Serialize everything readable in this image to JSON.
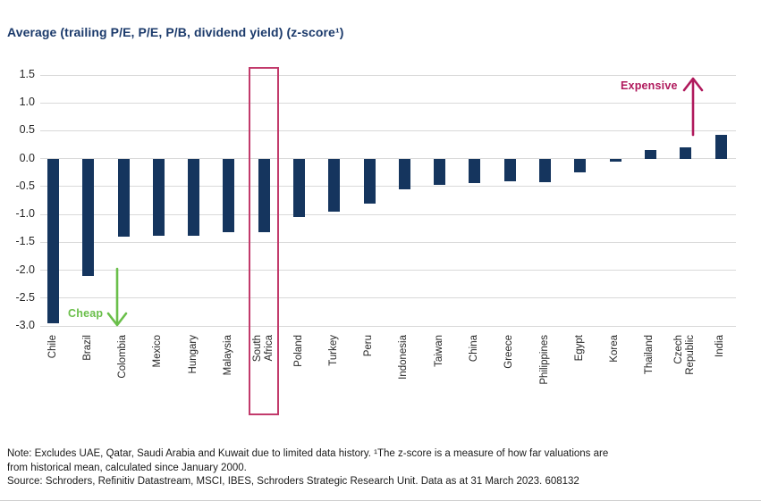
{
  "chart_data": {
    "type": "bar",
    "title": "Average (trailing P/E, P/E, P/B, dividend yield) (z-score¹)",
    "xlabel": "",
    "ylabel": "",
    "ylim": [
      -3.0,
      1.5
    ],
    "yticks": [
      1.5,
      1.0,
      0.5,
      0.0,
      -0.5,
      -1.0,
      -1.5,
      -2.0,
      -2.5,
      -3.0
    ],
    "grid": true,
    "bar_color": "#15355e",
    "gridline_color": "#d9d9d9",
    "categories": [
      "Chile",
      "Brazil",
      "Colombia",
      "Mexico",
      "Hungary",
      "Malaysia",
      "South Africa",
      "Poland",
      "Turkey",
      "Peru",
      "Indonesia",
      "Taiwan",
      "China",
      "Greece",
      "Philippines",
      "Egypt",
      "Korea",
      "Thailand",
      "Czech Republic",
      "India"
    ],
    "tick_labels": [
      "Chile",
      "Brazil",
      "Colombia",
      "Mexico",
      "Hungary",
      "Malaysia",
      "South\nAfrica",
      "Poland",
      "Turkey",
      "Peru",
      "Indonesia",
      "Taiwan",
      "China",
      "Greece",
      "Philippines",
      "Egypt",
      "Korea",
      "Thailand",
      "Czech\nRepublic",
      "India"
    ],
    "values": [
      -2.95,
      -2.1,
      -1.4,
      -1.38,
      -1.38,
      -1.32,
      -1.32,
      -1.05,
      -0.95,
      -0.8,
      -0.55,
      -0.47,
      -0.43,
      -0.4,
      -0.42,
      -0.25,
      -0.05,
      0.15,
      0.2,
      0.42
    ],
    "highlight": {
      "category": "South Africa",
      "color": "#c23a6b"
    },
    "annotations": [
      {
        "text": "Cheap",
        "color": "#6abf4a",
        "arrow": "down"
      },
      {
        "text": "Expensive",
        "color": "#b0195c",
        "arrow": "up"
      }
    ]
  },
  "footer": {
    "note_line1": "Note: Excludes UAE, Qatar, Saudi Arabia and Kuwait due to limited data history. ¹The z-score is a measure of how far valuations are",
    "note_line2": "from historical mean, calculated since January 2000.",
    "source_line": "Source: Schroders, Refinitiv Datastream, MSCI, IBES, Schroders Strategic Research Unit. Data as at 31 March 2023. 608132"
  }
}
